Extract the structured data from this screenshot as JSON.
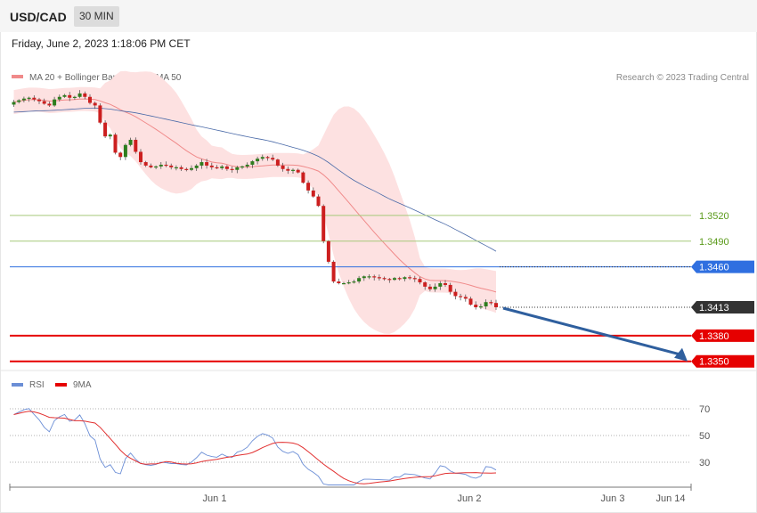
{
  "header": {
    "symbol": "USD/CAD",
    "timeframe": "30 MIN"
  },
  "date": "Friday, June 2, 2023 1:18:06 PM CET",
  "legend": {
    "ma20": "MA 20 + Bollinger Bands",
    "ma50": "MA 50",
    "copyright": "Research © 2023 Trading Central",
    "rsi": "RSI",
    "ma9": "9MA"
  },
  "colors": {
    "up": "#2e7d1e",
    "down": "#cc1f1f",
    "band": "#fde1e1",
    "ma20": "#f08a8a",
    "ma50": "#4a6aa8",
    "green_level": "#a6c97a",
    "blue_level": "#2f6fe0",
    "red_level": "#e60000",
    "last": "#333333",
    "arrow": "#2f5f9e",
    "rsi": "#6b8ed6",
    "rsi_ma": "#e23030"
  },
  "chart_data": [
    {
      "type": "candlestick",
      "ylim": [
        1.3335,
        1.358
      ],
      "x_ticks": [
        "Jun 1",
        "Jun 2",
        "Jun 3",
        "Jun 14"
      ],
      "levels": [
        {
          "label": "1.3520",
          "value": 1.352,
          "kind": "resistance"
        },
        {
          "label": "1.3490",
          "value": 1.349,
          "kind": "resistance"
        },
        {
          "label": "1.3460",
          "value": 1.346,
          "kind": "pivot"
        },
        {
          "label": "1.3413",
          "value": 1.3413,
          "kind": "last"
        },
        {
          "label": "1.3380",
          "value": 1.338,
          "kind": "support"
        },
        {
          "label": "1.3350",
          "value": 1.335,
          "kind": "support"
        }
      ],
      "closes": [
        1.3652,
        1.3654,
        1.3656,
        1.3657,
        1.3655,
        1.3653,
        1.365,
        1.3648,
        1.3655,
        1.3658,
        1.366,
        1.3657,
        1.3658,
        1.3662,
        1.3658,
        1.3651,
        1.3648,
        1.3628,
        1.3612,
        1.3614,
        1.3593,
        1.3588,
        1.3602,
        1.3608,
        1.3594,
        1.3582,
        1.3578,
        1.3576,
        1.3577,
        1.3579,
        1.3578,
        1.3576,
        1.3576,
        1.3574,
        1.3573,
        1.3575,
        1.3578,
        1.3582,
        1.3578,
        1.3576,
        1.3575,
        1.3577,
        1.3574,
        1.3573,
        1.3576,
        1.3577,
        1.3579,
        1.3583,
        1.3586,
        1.3588,
        1.3587,
        1.3585,
        1.3578,
        1.3574,
        1.3572,
        1.3573,
        1.357,
        1.3558,
        1.3549,
        1.3542,
        1.3531,
        1.349,
        1.3466,
        1.3443,
        1.3441,
        1.3441,
        1.3442,
        1.3443,
        1.3447,
        1.3449,
        1.3449,
        1.3448,
        1.3447,
        1.3446,
        1.3445,
        1.3447,
        1.3446,
        1.3448,
        1.3447,
        1.3446,
        1.3442,
        1.3437,
        1.3434,
        1.3437,
        1.3441,
        1.3439,
        1.3431,
        1.3426,
        1.3425,
        1.3423,
        1.3416,
        1.3413,
        1.3414,
        1.3419,
        1.3418,
        1.3413
      ],
      "rsi": {
        "levels": [
          70,
          50,
          30
        ],
        "ylim": [
          10,
          80
        ]
      }
    }
  ]
}
